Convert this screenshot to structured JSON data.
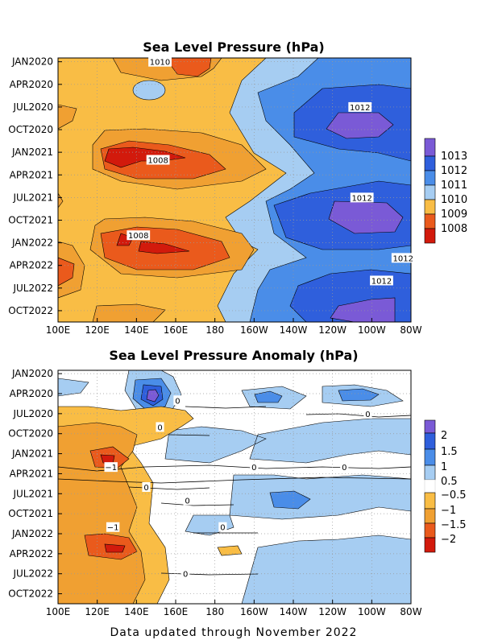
{
  "footer": "Data updated through November 2022",
  "colors": {
    "c1008": "#d21a0c",
    "c1009_8": "#ea5a1c",
    "c1009": "#f0a032",
    "c1010": "#f9bd45",
    "c1011": "#a6cdf2",
    "c1012": "#4a8de8",
    "c1013": "#2f5fdc",
    "cHigh": "#7a5ad6",
    "aNeg2": "#d21a0c",
    "aNeg15": "#ea5a1c",
    "aNeg1": "#f0a032",
    "aNeg05": "#f9bd45",
    "aZero": "#ffffff",
    "aPos05": "#a6cdf2",
    "aPos1": "#4a8de8",
    "aPos15": "#2f5fdc",
    "aPos2": "#7a5ad6"
  },
  "chart_data": [
    {
      "type": "heatmap",
      "title": "Sea Level Pressure (hPa)",
      "x_ticks": [
        "100E",
        "120E",
        "140E",
        "160E",
        "180",
        "160W",
        "140W",
        "120W",
        "100W",
        "80W"
      ],
      "x_range": [
        "100E",
        "80W"
      ],
      "y_ticks": [
        "JAN2020",
        "APR2020",
        "JUL2020",
        "OCT2020",
        "JAN2021",
        "APR2021",
        "JUL2021",
        "OCT2021",
        "JAN2022",
        "APR2022",
        "JUL2022",
        "OCT2022"
      ],
      "y_range": [
        "JAN2020",
        "NOV2022"
      ],
      "colorbar": [
        "1008",
        "1009",
        "1010",
        "1011",
        "1012",
        "1013"
      ],
      "contour_labels": [
        {
          "text": "1010",
          "lon": 152,
          "time": "JAN2020"
        },
        {
          "text": "1012",
          "lon": 254,
          "time": "JUL2020"
        },
        {
          "text": "1008",
          "lon": 151,
          "time": "FEB2021"
        },
        {
          "text": "1012",
          "lon": 255,
          "time": "JUL2021"
        },
        {
          "text": "1008",
          "lon": 141,
          "time": "DEC2021"
        },
        {
          "text": "1012",
          "lon": 276,
          "time": "MAR2022"
        },
        {
          "text": "1012",
          "lon": 265,
          "time": "JUN2022"
        }
      ],
      "grid": true
    },
    {
      "type": "heatmap",
      "title": "Sea Level Pressure Anomaly (hPa)",
      "x_ticks": [
        "100E",
        "120E",
        "140E",
        "160E",
        "180",
        "160W",
        "140W",
        "120W",
        "100W",
        "80W"
      ],
      "x_range": [
        "100E",
        "80W"
      ],
      "y_ticks": [
        "JAN2020",
        "APR2020",
        "JUL2020",
        "OCT2020",
        "JAN2021",
        "APR2021",
        "JUL2021",
        "OCT2021",
        "JAN2022",
        "APR2022",
        "JUL2022",
        "OCT2022"
      ],
      "y_range": [
        "JAN2020",
        "NOV2022"
      ],
      "colorbar": [
        "2",
        "1.5",
        "1",
        "0.5",
        "−0.5",
        "−1",
        "−1.5",
        "−2"
      ],
      "contour_labels": [
        {
          "text": "0",
          "lon": 161,
          "time": "MAY2020"
        },
        {
          "text": "0",
          "lon": 258,
          "time": "JUL2020"
        },
        {
          "text": "0",
          "lon": 152,
          "time": "SEP2020"
        },
        {
          "text": "−1",
          "lon": 127,
          "time": "MAR2021"
        },
        {
          "text": "0",
          "lon": 200,
          "time": "MAR2021"
        },
        {
          "text": "0",
          "lon": 246,
          "time": "MAR2021"
        },
        {
          "text": "0",
          "lon": 145,
          "time": "JUN2021"
        },
        {
          "text": "0",
          "lon": 166,
          "time": "AUG2021"
        },
        {
          "text": "−1",
          "lon": 128,
          "time": "DEC2021"
        },
        {
          "text": "0",
          "lon": 184,
          "time": "DEC2021"
        },
        {
          "text": "0",
          "lon": 165,
          "time": "JUL2022"
        }
      ],
      "grid": true
    }
  ]
}
